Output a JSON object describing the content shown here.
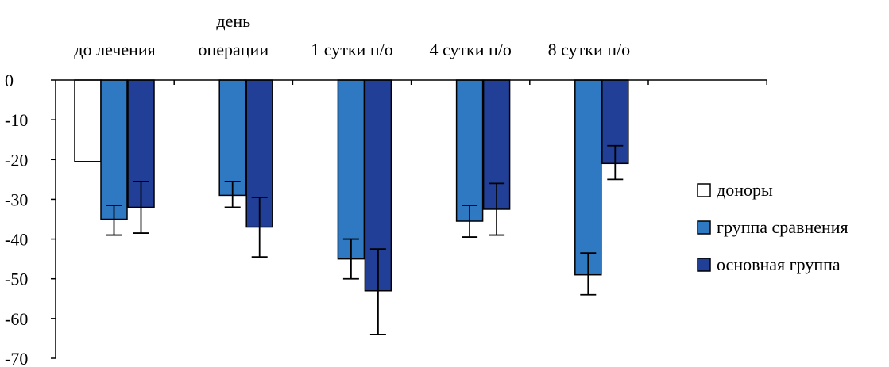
{
  "chart_data": {
    "type": "bar",
    "categories": [
      [
        "до лечения"
      ],
      [
        "день",
        "операции"
      ],
      [
        "1 сутки п/о"
      ],
      [
        "4 сутки п/о"
      ],
      [
        "8 сутки п/о"
      ]
    ],
    "series": [
      {
        "name": "доноры",
        "color": "#ffffff",
        "values": [
          -20.5,
          null,
          null,
          null,
          null
        ],
        "error_low": [
          null,
          null,
          null,
          null,
          null
        ],
        "error_high": [
          null,
          null,
          null,
          null,
          null
        ]
      },
      {
        "name": "группа сравнения",
        "color": "#2e79c2",
        "values": [
          -35,
          -29,
          -45,
          -35.5,
          -49
        ],
        "error_low": [
          -39,
          -32,
          -50,
          -39.5,
          -54
        ],
        "error_high": [
          -31.5,
          -25.5,
          -40,
          -31.5,
          -43.5
        ]
      },
      {
        "name": "основная группа",
        "color": "#213f96",
        "values": [
          -32,
          -37,
          -53,
          -32.5,
          -21
        ],
        "error_low": [
          -38.5,
          -44.5,
          -64,
          -39,
          -25
        ],
        "error_high": [
          -25.5,
          -29.5,
          -42.5,
          -26,
          -16.5
        ]
      }
    ],
    "ylim": [
      -70,
      0
    ],
    "yticks": [
      0,
      -10,
      -20,
      -30,
      -40,
      -50,
      -60,
      -70
    ],
    "grid": false,
    "legend_position": "right"
  }
}
